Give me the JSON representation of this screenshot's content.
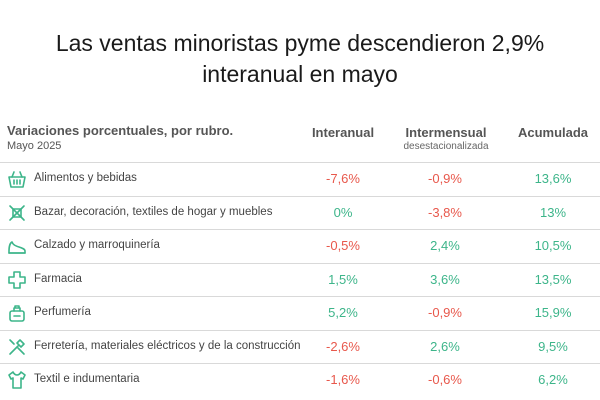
{
  "title_line1": "Las ventas minoristas pyme descendieron 2,9%",
  "title_line2": "interanual en mayo",
  "header": {
    "label": "Variaciones porcentuales, por rubro.",
    "period": "Mayo 2025",
    "col_interanual": "Interanual",
    "col_intermensual": "Intermensual",
    "col_intermensual_sub": "desestacionalizada",
    "col_acumulada": "Acumulada"
  },
  "colors": {
    "negative": "#e8584c",
    "positive": "#3db58a"
  },
  "chart_data": {
    "type": "table",
    "title": "Las ventas minoristas pyme descendieron 2,9% interanual en mayo",
    "subtitle": "Variaciones porcentuales, por rubro. Mayo 2025",
    "columns": [
      "Interanual",
      "Intermensual desestacionalizada",
      "Acumulada"
    ],
    "rows": [
      {
        "rubro": "Alimentos y bebidas",
        "icon": "grocery-basket-icon",
        "interanual": "-7,6%",
        "intermensual": "-0,9%",
        "acumulada": "13,6%"
      },
      {
        "rubro": "Bazar, decoración, textiles de hogar y muebles",
        "icon": "housewares-icon",
        "interanual": "0%",
        "intermensual": "-3,8%",
        "acumulada": "13%"
      },
      {
        "rubro": "Calzado y marroquinería",
        "icon": "shoe-icon",
        "interanual": "-0,5%",
        "intermensual": "2,4%",
        "acumulada": "10,5%"
      },
      {
        "rubro": "Farmacia",
        "icon": "pharmacy-cross-icon",
        "interanual": "1,5%",
        "intermensual": "3,6%",
        "acumulada": "13,5%"
      },
      {
        "rubro": "Perfumería",
        "icon": "perfume-icon",
        "interanual": "5,2%",
        "intermensual": "-0,9%",
        "acumulada": "15,9%"
      },
      {
        "rubro": "Ferretería, materiales eléctricos y de la construcción",
        "icon": "tools-icon",
        "interanual": "-2,6%",
        "intermensual": "2,6%",
        "acumulada": "9,5%"
      },
      {
        "rubro": "Textil e indumentaria",
        "icon": "tshirt-icon",
        "interanual": "-1,6%",
        "intermensual": "-0,6%",
        "acumulada": "6,2%"
      }
    ]
  }
}
